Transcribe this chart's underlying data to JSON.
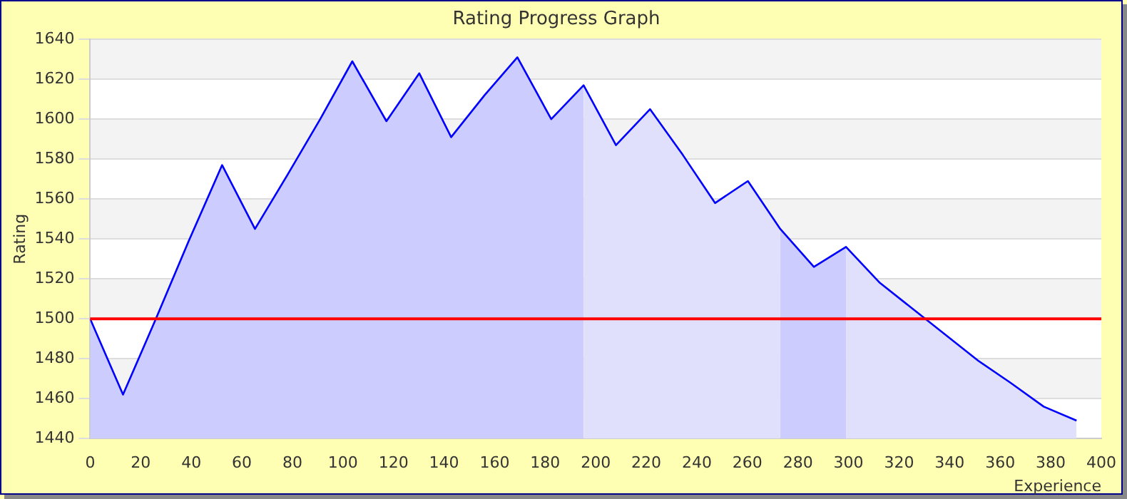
{
  "chart_data": {
    "type": "area",
    "title": "Rating Progress Graph",
    "xlabel": "Experience",
    "ylabel": "Rating",
    "series": [
      {
        "color": "#ccccff",
        "x": [
          0,
          13,
          26,
          39,
          52.2,
          65.2,
          78,
          91,
          103.7,
          117.2,
          130.2,
          142.8,
          156,
          169,
          182.4,
          195.2
        ],
        "values": [
          1500,
          1462,
          1500,
          1539,
          1577,
          1545,
          1572,
          1600,
          1629,
          1599,
          1623,
          1591,
          1612,
          1631,
          1600,
          1617
        ]
      },
      {
        "color": "#e0e0fc",
        "x": [
          195.2,
          208,
          221.5,
          234.5,
          247.2,
          260.2,
          273
        ],
        "values": [
          1617,
          1587,
          1605,
          1582,
          1558,
          1569,
          1545
        ]
      },
      {
        "color": "#ccccff",
        "x": [
          273,
          286.3,
          299
        ],
        "values": [
          1545,
          1526,
          1536
        ]
      },
      {
        "color": "#e0e0fc",
        "x": [
          299,
          312.4,
          351.3,
          364,
          377.2,
          390.2
        ],
        "values": [
          1536,
          1518,
          1479,
          1468,
          1456,
          1449
        ]
      },
      {
        "type": "line",
        "color": "#0000ff",
        "x": [
          0,
          13,
          26,
          39,
          52.2,
          65.2,
          78,
          91,
          103.7,
          117.2,
          130.2,
          142.8,
          156,
          169,
          182.4,
          195.2,
          208,
          221.5,
          234.5,
          247.2,
          260.2,
          273,
          286.3,
          299,
          312.4,
          351.3,
          364,
          377.2,
          390.2
        ],
        "values": [
          1500,
          1462,
          1500,
          1539,
          1577,
          1545,
          1572,
          1600,
          1629,
          1599,
          1623,
          1591,
          1612,
          1631,
          1600,
          1617,
          1587,
          1605,
          1582,
          1558,
          1569,
          1545,
          1526,
          1536,
          1518,
          1479,
          1468,
          1456,
          1449
        ]
      }
    ],
    "xlim": [
      0,
      400
    ],
    "xticks": [
      0,
      20,
      40,
      60,
      80,
      100,
      120,
      140,
      160,
      180,
      200,
      220,
      240,
      260,
      280,
      300,
      320,
      340,
      360,
      380,
      400
    ],
    "ylim": [
      1440,
      1640
    ],
    "yticks": [
      1440,
      1460,
      1480,
      1500,
      1520,
      1540,
      1560,
      1580,
      1600,
      1620,
      1640
    ],
    "grid": "y",
    "legend": false,
    "ref_lines": [
      {
        "axis": "y",
        "value": 1500,
        "color": "#ff0000"
      }
    ]
  }
}
